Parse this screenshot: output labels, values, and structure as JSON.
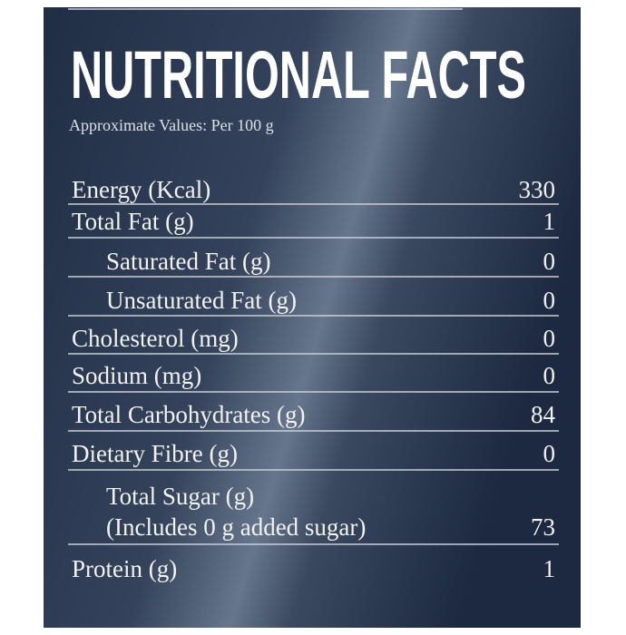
{
  "header": {
    "title": "NUTRITIONAL FACTS",
    "subtitle": "Approximate Values: Per 100 g"
  },
  "table": {
    "rows": [
      {
        "label": "Energy (Kcal)",
        "value": 330
      },
      {
        "label": "Total Fat (g)",
        "value": 1
      },
      {
        "label": "Saturated Fat (g)",
        "value": 0
      },
      {
        "label": "Unsaturated Fat (g)",
        "value": 0
      },
      {
        "label": "Cholesterol (mg)",
        "value": 0
      },
      {
        "label": "Sodium (mg)",
        "value": 0
      },
      {
        "label": "Total Carbohydrates (g)",
        "value": 84
      },
      {
        "label": "Dietary Fibre (g)",
        "value": 0
      },
      {
        "label": "Total Sugar (g)",
        "note": "(Includes 0 g added sugar)",
        "value": 73
      },
      {
        "label": "Protein (g)",
        "value": 1
      }
    ]
  }
}
